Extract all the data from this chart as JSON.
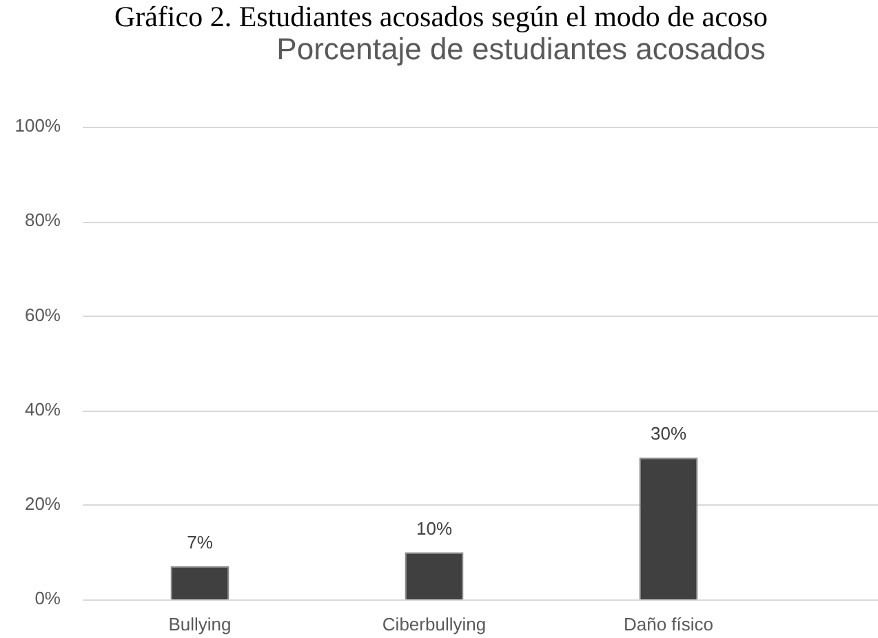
{
  "chart_data": {
    "type": "bar",
    "title": "Gráfico 2. Estudiantes acosados según el modo de acoso",
    "subtitle": "Porcentaje de estudiantes acosados",
    "categories": [
      "Bullying",
      "Ciberbullying",
      "Daño físico"
    ],
    "values": [
      7,
      10,
      30
    ],
    "value_labels": [
      "7%",
      "10%",
      "30%"
    ],
    "color": "#404040",
    "ylim": [
      0,
      100
    ],
    "yticks": [
      {
        "value": 0,
        "label": "0%"
      },
      {
        "value": 20,
        "label": "20%"
      },
      {
        "value": 40,
        "label": "40%"
      },
      {
        "value": 60,
        "label": "60%"
      },
      {
        "value": 80,
        "label": "80%"
      },
      {
        "value": 100,
        "label": "100%"
      }
    ],
    "grid": "y",
    "legend": false
  }
}
